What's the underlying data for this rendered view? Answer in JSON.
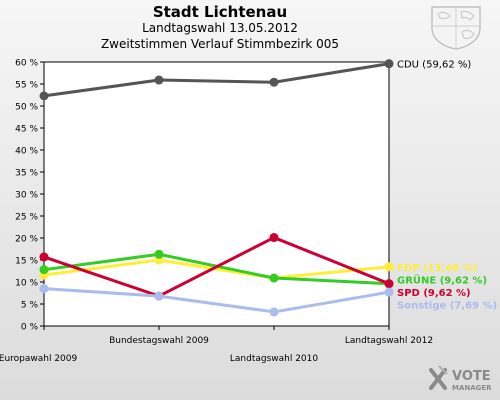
{
  "header": {
    "title": "Stadt Lichtenau",
    "subtitle1": "Landtagswahl 13.05.2012",
    "subtitle2": "Zweitstimmen Verlauf Stimmbezirk 005"
  },
  "logo": {
    "word1": "VOTE",
    "word2": "MANAGER"
  },
  "chart_data": {
    "type": "line",
    "x": [
      "Europawahl 2009",
      "Bundestagswahl 2009",
      "Landtagswahl 2010",
      "Landtagswahl 2012"
    ],
    "ylim": [
      0,
      60
    ],
    "yticks": [
      "0 %",
      "5 %",
      "10 %",
      "15 %",
      "20 %",
      "25 %",
      "30 %",
      "35 %",
      "40 %",
      "45 %",
      "50 %",
      "55 %",
      "60 %"
    ],
    "grid": false,
    "legend": "right",
    "series": [
      {
        "name": "CDU",
        "label": "CDU (59,62 %)",
        "color": "#555555",
        "values": [
          52.3,
          55.9,
          55.4,
          59.62
        ]
      },
      {
        "name": "FDP",
        "label": "FDP (13,46 %)",
        "color": "#ffee33",
        "values": [
          11.6,
          15.0,
          10.9,
          13.46
        ]
      },
      {
        "name": "GRÜNE",
        "label": "GRÜNE (9,62 %)",
        "color": "#33cc22",
        "values": [
          12.8,
          16.3,
          10.9,
          9.62
        ]
      },
      {
        "name": "SPD",
        "label": "SPD (9,62 %)",
        "color": "#cc0033",
        "values": [
          15.7,
          6.8,
          20.1,
          9.62
        ]
      },
      {
        "name": "Sonstige",
        "label": "Sonstige (7,69 %)",
        "color": "#aabbee",
        "values": [
          8.5,
          6.8,
          3.2,
          7.69
        ]
      }
    ]
  }
}
